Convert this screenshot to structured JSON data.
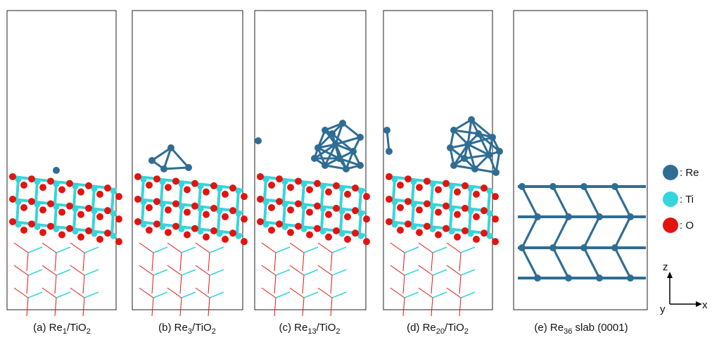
{
  "captions": [
    [
      "(a) Re",
      "1",
      "/TiO",
      "2"
    ],
    [
      "(b) Re",
      "3",
      "/TiO",
      "2"
    ],
    [
      "(c) Re",
      "13",
      "/TiO",
      "2"
    ],
    [
      "(d) Re",
      "20",
      "/TiO",
      "2"
    ],
    [
      "(e) Re",
      "36",
      " slab (0001)"
    ]
  ],
  "legend": [
    ": Re",
    ": Ti",
    ": O"
  ],
  "axes": {
    "z": "z",
    "y": "y",
    "x": "x"
  }
}
